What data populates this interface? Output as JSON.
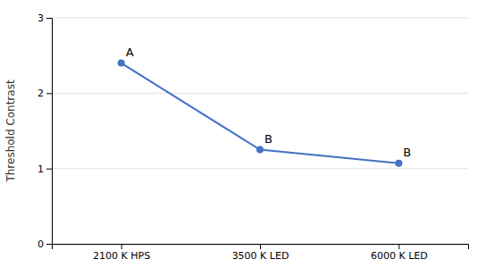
{
  "chart_data": {
    "type": "line",
    "categories": [
      "2100 K HPS",
      "3500 K LED",
      "6000 K LED"
    ],
    "values": [
      2.4,
      1.25,
      1.07
    ],
    "annotations": [
      "A",
      "B",
      "B"
    ],
    "color": "#4472C4",
    "marker": "circle",
    "ylabel": "Threshold Contrast",
    "ylim": [
      0,
      3
    ],
    "yticks": [
      0,
      1,
      2,
      3
    ],
    "grid": true
  }
}
